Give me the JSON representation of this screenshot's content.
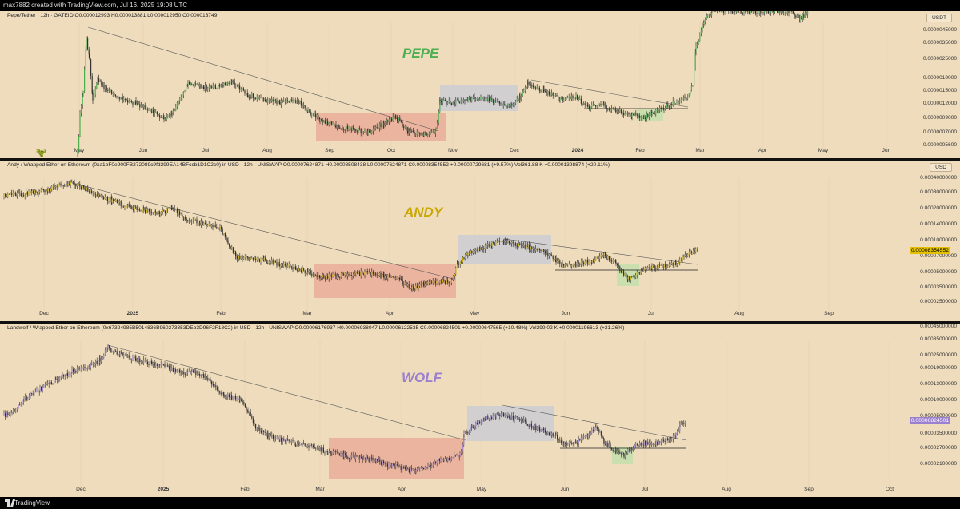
{
  "header": {
    "text": "max7882 created with TradingView.com, Jul 16, 2025 19:08 UTC"
  },
  "footer": {
    "brand": "TradingView"
  },
  "colors": {
    "bg": "#eedcbd",
    "pepe": "#4caf50",
    "andy": "#c9a800",
    "wolf": "#9b7fd0",
    "red_box": "#e8a796",
    "blue_box": "#c7cbd6",
    "green_box": "#bde0a8"
  },
  "panels": [
    {
      "legend": "Pepe/Tether · 12h · GATEIO  O0.000012993  H0.000013881  L0.000012950  C0.000013749",
      "symbol": "PEPE",
      "currency": "USDT",
      "y_ticks": [
        "0.0000045000",
        "0.0000035000",
        "0.0000025000",
        "0.0000019000",
        "0.0000015000",
        "0.0000012000",
        "0.0000009000",
        "0.0000007000",
        "0.0000005600"
      ],
      "x_ticks": [
        "May",
        "Jun",
        "Jul",
        "Aug",
        "Sep",
        "Oct",
        "Nov",
        "Dec",
        "2024",
        "Feb",
        "Mar",
        "Apr",
        "May",
        "Jun"
      ]
    },
    {
      "legend": "Andy / Wrapped Ether on Ethereum (0xa1bF0e900FB272089c9fd299EA14BFccb1D1C2c0) in USD · 12h · UNISWAP  O0.00007624871  H0.00008508438  L0.00007624871  C0.00008354552  +0.00000729681 (+9.57%)  Vol361.88 K  +0.00001398874 (+20.11%)",
      "symbol": "ANDY",
      "currency": "USD",
      "y_ticks": [
        "0.00040000000",
        "0.00030000000",
        "0.00020000000",
        "0.00014000000",
        "0.00010000000",
        "0.00007000000",
        "0.00005000000",
        "0.00003500000",
        "0.00002500000"
      ],
      "current": "0.00008354552",
      "x_ticks": [
        "Dec",
        "2025",
        "Feb",
        "Mar",
        "Apr",
        "May",
        "Jun",
        "Jul",
        "Aug",
        "Sep"
      ]
    },
    {
      "legend": "Landwolf / Wrapped Ether on Ethereum (0x67324985B5014836B960273353DEb3D96F2F18C2) in USD · 12h · UNISWAP  O0.00006176937  H0.00006938047  L0.00006122535  C0.00006824501  +0.00000647565 (+10.48%)  Vol299.02 K  +0.00001196613 (+21.26%)",
      "symbol": "WOLF",
      "y_ticks": [
        "0.00045000000",
        "0.00035000000",
        "0.00025000000",
        "0.00019000000",
        "0.00013000000",
        "0.00010000000",
        "0.00005000000",
        "0.00003500000",
        "0.00002700000",
        "0.00002100000"
      ],
      "current": "0.00006824501",
      "x_ticks": [
        "Dec",
        "2025",
        "Feb",
        "Mar",
        "Apr",
        "May",
        "Jun",
        "Jul",
        "Aug",
        "Sep",
        "Oct"
      ]
    }
  ],
  "chart_data": [
    {
      "type": "candlestick",
      "title": "PEPE",
      "series": [
        {
          "name": "Pepe/Tether",
          "points": [
            [
              "May",
              5e-07
            ],
            [
              "May",
              4.5e-06
            ],
            [
              "Jun",
              1.5e-06
            ],
            [
              "Jul",
              1.2e-06
            ],
            [
              "Aug",
              1.4e-06
            ],
            [
              "Sep",
              8e-07
            ],
            [
              "Oct",
              7e-07
            ],
            [
              "Nov",
              1.2e-06
            ],
            [
              "Dec",
              1.6e-06
            ],
            [
              "2024",
              1.2e-06
            ],
            [
              "Feb",
              9.5e-07
            ],
            [
              "Mar",
              4.5e-06
            ],
            [
              "Apr",
              4.5e-06
            ]
          ]
        }
      ],
      "y_scale": "log",
      "annotations": [
        "descending trendline",
        "accumulation box Sep–Oct (red)",
        "range box Nov–Dec (blue)",
        "retest box Feb (green)"
      ]
    },
    {
      "type": "candlestick",
      "title": "ANDY",
      "series": [
        {
          "name": "Andy / Wrapped Ether",
          "points": [
            [
              "Dec",
              0.00024
            ],
            [
              "Dec",
              0.0003
            ],
            [
              "2025",
              0.00026
            ],
            [
              "Feb",
              0.00016
            ],
            [
              "Mar",
              5.5e-05
            ],
            [
              "Apr",
              5.5e-05
            ],
            [
              "Apr",
              4.2e-05
            ],
            [
              "May",
              8.5e-05
            ],
            [
              "Jun",
              6.2e-05
            ],
            [
              "Jul",
              5.5e-05
            ],
            [
              "Jul",
              8.354552e-05
            ]
          ]
        }
      ],
      "y_scale": "log",
      "annotations": [
        "descending trendline",
        "accumulation box Mar–Apr (red)",
        "range box May (blue)",
        "retest box Jun (green)"
      ]
    },
    {
      "type": "candlestick",
      "title": "WOLF",
      "series": [
        {
          "name": "Landwolf / Wrapped Ether",
          "points": [
            [
              "Dec",
              0.00012
            ],
            [
              "Dec",
              0.0003
            ],
            [
              "2025",
              0.0002
            ],
            [
              "Feb",
              0.00012
            ],
            [
              "Mar",
              3e-05
            ],
            [
              "Apr",
              2.5e-05
            ],
            [
              "May",
              6e-05
            ],
            [
              "Jun",
              4.5e-05
            ],
            [
              "Jul",
              4e-05
            ],
            [
              "Jul",
              6.824501e-05
            ]
          ]
        }
      ],
      "y_scale": "log",
      "annotations": [
        "descending trendline",
        "accumulation box Mar–Apr (red)",
        "range box May (blue)",
        "retest box Jun–Jul (green)"
      ]
    }
  ]
}
